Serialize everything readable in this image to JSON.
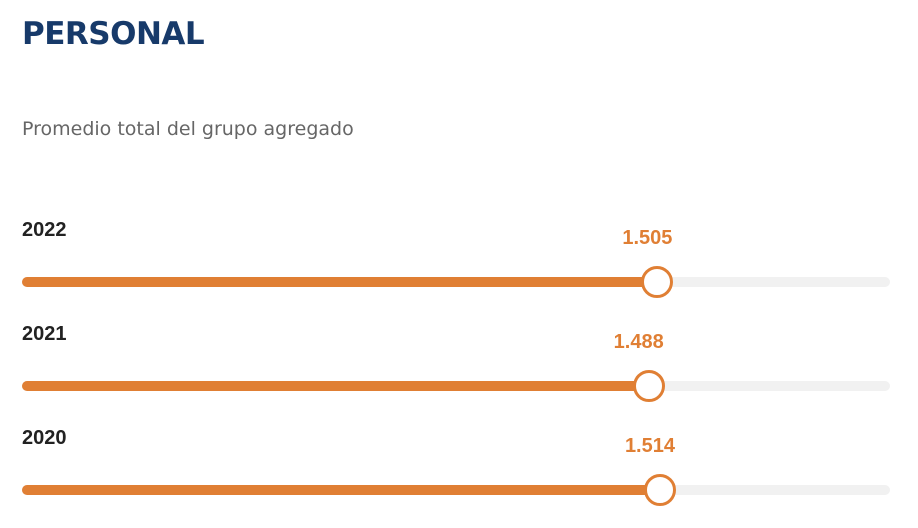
{
  "header": {
    "title": "PERSONAL",
    "subtitle": "Promedio total del grupo agregado"
  },
  "colors": {
    "title": "#173a6a",
    "accent": "#e07f34",
    "track": "#f1f1f1"
  },
  "chart_data": {
    "type": "bar",
    "orientation": "horizontal",
    "title": "PERSONAL",
    "subtitle": "Promedio total del grupo agregado",
    "categories": [
      "2022",
      "2021",
      "2020"
    ],
    "values": [
      1.505,
      1.488,
      1.514
    ],
    "value_labels": [
      "1.505",
      "1.488",
      "1.514"
    ],
    "bar_fill_fraction": [
      0.732,
      0.722,
      0.735
    ],
    "grid": false
  }
}
